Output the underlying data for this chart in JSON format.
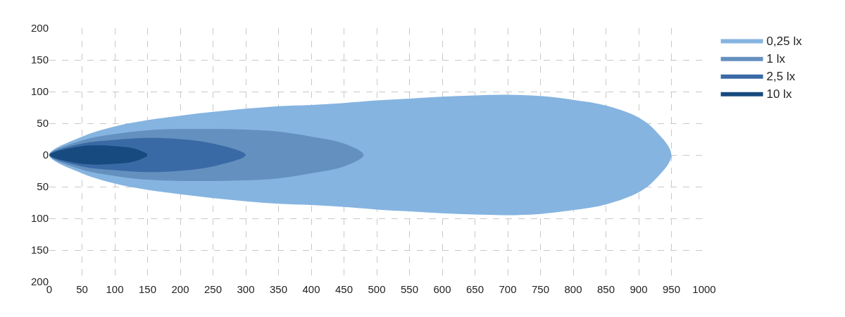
{
  "chart_data": {
    "type": "area",
    "xlim": [
      0,
      1000
    ],
    "ylim": [
      -200,
      200
    ],
    "xticks": [
      0,
      50,
      100,
      150,
      200,
      250,
      300,
      350,
      400,
      450,
      500,
      550,
      600,
      650,
      700,
      750,
      800,
      850,
      900,
      950,
      1000
    ],
    "yticks": [
      {
        "value": -200,
        "label": "200"
      },
      {
        "value": -150,
        "label": "150"
      },
      {
        "value": -100,
        "label": "100"
      },
      {
        "value": -50,
        "label": "50"
      },
      0,
      50,
      100,
      150,
      200
    ],
    "grid": true,
    "legend": "right",
    "series": [
      {
        "name": "0,25 lx",
        "color": "#85b4e0",
        "x": [
          0,
          50,
          100,
          150,
          200,
          250,
          300,
          350,
          400,
          450,
          500,
          550,
          600,
          650,
          700,
          750,
          800,
          850,
          900,
          925,
          950,
          925,
          900,
          850,
          800,
          750,
          700,
          650,
          600,
          550,
          500,
          450,
          400,
          350,
          300,
          250,
          200,
          150,
          100,
          50,
          0
        ],
        "values": [
          0,
          29,
          45,
          55,
          62,
          68,
          73,
          77,
          79,
          82,
          86,
          89,
          92,
          94,
          95,
          93,
          87,
          78,
          59,
          39,
          0,
          -39,
          -59,
          -78,
          -87,
          -93,
          -95,
          -94,
          -92,
          -89,
          -86,
          -82,
          -79,
          -77,
          -73,
          -68,
          -62,
          -55,
          -45,
          -29,
          0
        ]
      },
      {
        "name": "1 lx",
        "color": "#6490bf",
        "x": [
          0,
          50,
          100,
          150,
          200,
          250,
          300,
          350,
          400,
          450,
          480,
          450,
          400,
          350,
          300,
          250,
          200,
          150,
          100,
          50,
          0
        ],
        "values": [
          0,
          23,
          33,
          39,
          41,
          41,
          40,
          37,
          29,
          18,
          0,
          -18,
          -29,
          -37,
          -40,
          -41,
          -41,
          -39,
          -33,
          -23,
          0
        ]
      },
      {
        "name": "2,5 lx",
        "color": "#3a6aa5",
        "x": [
          0,
          50,
          100,
          150,
          200,
          250,
          300,
          250,
          200,
          150,
          100,
          50,
          0
        ],
        "values": [
          0,
          18,
          24,
          27,
          25,
          18,
          0,
          -18,
          -25,
          -27,
          -24,
          -18,
          0
        ]
      },
      {
        "name": "10 lx",
        "color": "#174a7e",
        "x": [
          0,
          50,
          100,
          130,
          150,
          130,
          100,
          50,
          0
        ],
        "values": [
          0,
          14,
          14,
          10,
          0,
          -10,
          -14,
          -14,
          0
        ]
      }
    ]
  }
}
